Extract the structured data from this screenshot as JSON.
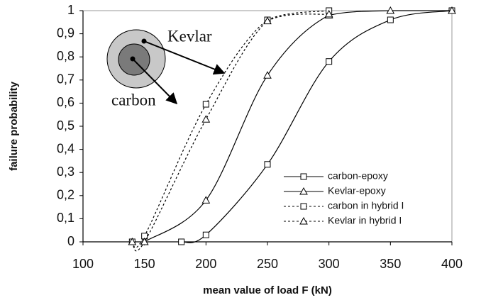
{
  "chart_data": {
    "type": "line",
    "xlabel": "mean value of load F (kN)",
    "ylabel": "failure probability",
    "xlim": [
      100,
      400
    ],
    "ylim": [
      0,
      1
    ],
    "xticks": [
      100,
      150,
      200,
      250,
      300,
      350,
      400
    ],
    "yticks": [
      0,
      {
        "value": 0.1,
        "label": "0,1"
      },
      {
        "value": 0.2,
        "label": "0,2"
      },
      {
        "value": 0.3,
        "label": "0,3"
      },
      {
        "value": 0.4,
        "label": "0,4"
      },
      {
        "value": 0.5,
        "label": "0,5"
      },
      {
        "value": 0.6,
        "label": "0,6"
      },
      {
        "value": 0.7,
        "label": "0,7"
      },
      {
        "value": 0.8,
        "label": "0,8"
      },
      {
        "value": 0.9,
        "label": "0,9"
      },
      1
    ],
    "legend": "lower right",
    "series": [
      {
        "name": "carbon-epoxy",
        "color": "#000000",
        "dash": "solid",
        "marker": "square",
        "x": [
          180,
          200,
          250,
          300,
          350,
          400
        ],
        "values": [
          0,
          0.03,
          0.335,
          0.78,
          0.96,
          1
        ]
      },
      {
        "name": "Kevlar-epoxy",
        "color": "#000000",
        "dash": "solid",
        "marker": "triangle",
        "x": [
          150,
          200,
          250,
          300,
          350,
          400
        ],
        "values": [
          0,
          0.18,
          0.72,
          0.98,
          1,
          1
        ]
      },
      {
        "name": "carbon in hybrid I",
        "color": "#000000",
        "dash": "dotted",
        "marker": "square",
        "x": [
          140,
          150,
          200,
          250,
          300
        ],
        "values": [
          0,
          0.025,
          0.595,
          0.96,
          1
        ]
      },
      {
        "name": "Kevlar in hybrid I",
        "color": "#000000",
        "dash": "dotted",
        "marker": "triangle",
        "x": [
          140,
          150,
          200,
          250,
          300
        ],
        "values": [
          0,
          0,
          0.53,
          0.955,
          0.985
        ]
      }
    ],
    "annotations": [
      "Kevlar",
      "carbon"
    ]
  }
}
